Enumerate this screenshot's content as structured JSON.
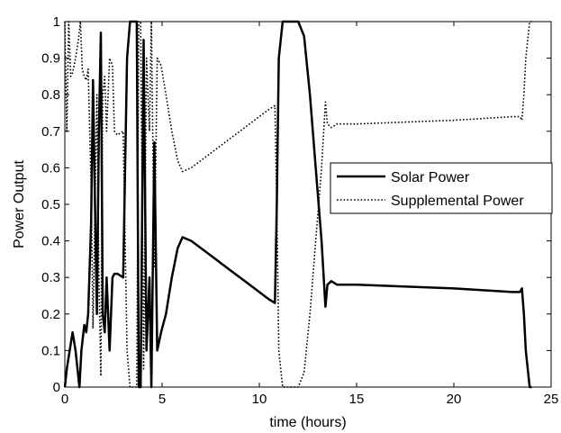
{
  "chart_data": {
    "type": "line",
    "title": "",
    "xlabel": "time (hours)",
    "ylabel": "Power Output",
    "xlim": [
      0,
      25
    ],
    "ylim": [
      0,
      1
    ],
    "xticks": [
      0,
      5,
      10,
      15,
      20,
      25
    ],
    "xtick_labels": [
      "0",
      "5",
      "10",
      "15",
      "20",
      "25"
    ],
    "yticks": [
      0,
      0.1,
      0.2,
      0.3,
      0.4,
      0.5,
      0.6,
      0.7,
      0.8,
      0.9,
      1
    ],
    "ytick_labels": [
      "0",
      "0.1",
      "0.2",
      "0.3",
      "0.4",
      "0.5",
      "0.6",
      "0.7",
      "0.8",
      "0.9",
      "1"
    ],
    "grid": false,
    "legend_position": "right-middle",
    "series": [
      {
        "name": "Solar Power",
        "style": "solid",
        "color": "#000000",
        "x": [
          0.0,
          0.1,
          0.4,
          0.55,
          0.75,
          0.85,
          1.0,
          1.1,
          1.2,
          1.35,
          1.45,
          1.55,
          1.65,
          1.75,
          1.85,
          1.95,
          2.05,
          2.15,
          2.3,
          2.45,
          2.55,
          2.7,
          3.0,
          3.2,
          3.35,
          3.45,
          3.7,
          3.8,
          3.9,
          4.05,
          4.2,
          4.35,
          4.45,
          4.6,
          4.75,
          4.95,
          5.2,
          5.5,
          5.8,
          6.05,
          6.5,
          7.5,
          8.5,
          9.5,
          10.5,
          10.8,
          10.9,
          11.0,
          11.2,
          11.5,
          12.0,
          12.3,
          12.6,
          12.9,
          13.2,
          13.4,
          13.5,
          13.7,
          14.0,
          15.0,
          20.0,
          23.0,
          23.4,
          23.5,
          23.6,
          23.7,
          23.9,
          24.0
        ],
        "y": [
          0.0,
          0.05,
          0.15,
          0.1,
          0.0,
          0.1,
          0.17,
          0.15,
          0.2,
          0.45,
          0.84,
          0.5,
          0.2,
          0.7,
          0.97,
          0.2,
          0.15,
          0.3,
          0.1,
          0.3,
          0.31,
          0.31,
          0.3,
          0.9,
          1.0,
          1.0,
          1.0,
          0.0,
          0.0,
          0.95,
          0.1,
          0.3,
          0.0,
          0.67,
          0.1,
          0.15,
          0.2,
          0.3,
          0.38,
          0.41,
          0.4,
          0.36,
          0.32,
          0.28,
          0.24,
          0.23,
          0.5,
          0.9,
          1.0,
          1.0,
          1.0,
          0.96,
          0.8,
          0.6,
          0.4,
          0.22,
          0.28,
          0.29,
          0.28,
          0.28,
          0.27,
          0.26,
          0.26,
          0.27,
          0.2,
          0.1,
          0.0,
          0.0
        ]
      },
      {
        "name": "Supplemental Power",
        "style": "dotted",
        "color": "#000000",
        "x": [
          0.0,
          0.1,
          0.2,
          0.3,
          0.4,
          0.55,
          0.7,
          0.8,
          0.9,
          1.0,
          1.1,
          1.2,
          1.35,
          1.45,
          1.55,
          1.65,
          1.75,
          1.85,
          1.95,
          2.05,
          2.15,
          2.3,
          2.45,
          2.55,
          2.7,
          3.0,
          3.2,
          3.35,
          3.45,
          3.7,
          3.8,
          3.9,
          4.05,
          4.2,
          4.35,
          4.45,
          4.6,
          4.75,
          4.95,
          5.2,
          5.5,
          5.8,
          6.05,
          6.5,
          7.5,
          8.5,
          9.5,
          10.5,
          10.8,
          10.9,
          11.0,
          11.2,
          11.5,
          12.0,
          12.3,
          12.6,
          12.9,
          13.2,
          13.4,
          13.5,
          13.7,
          14.0,
          15.0,
          20.0,
          23.0,
          23.4,
          23.5,
          23.6,
          23.7,
          23.9,
          24.0
        ],
        "y": [
          1.0,
          0.7,
          1.0,
          0.85,
          0.86,
          0.9,
          0.95,
          1.0,
          0.87,
          0.85,
          0.84,
          0.87,
          0.55,
          0.16,
          0.5,
          0.8,
          0.3,
          0.03,
          0.8,
          0.85,
          0.7,
          0.9,
          0.88,
          0.7,
          0.69,
          0.7,
          0.1,
          0.0,
          0.0,
          0.0,
          1.0,
          1.0,
          0.05,
          0.9,
          0.7,
          1.0,
          0.33,
          0.9,
          0.88,
          0.8,
          0.7,
          0.62,
          0.59,
          0.6,
          0.64,
          0.68,
          0.72,
          0.76,
          0.77,
          0.5,
          0.1,
          0.0,
          0.0,
          0.0,
          0.04,
          0.2,
          0.4,
          0.6,
          0.78,
          0.72,
          0.71,
          0.72,
          0.72,
          0.73,
          0.74,
          0.74,
          0.73,
          0.8,
          0.9,
          1.0,
          1.0
        ]
      }
    ]
  }
}
